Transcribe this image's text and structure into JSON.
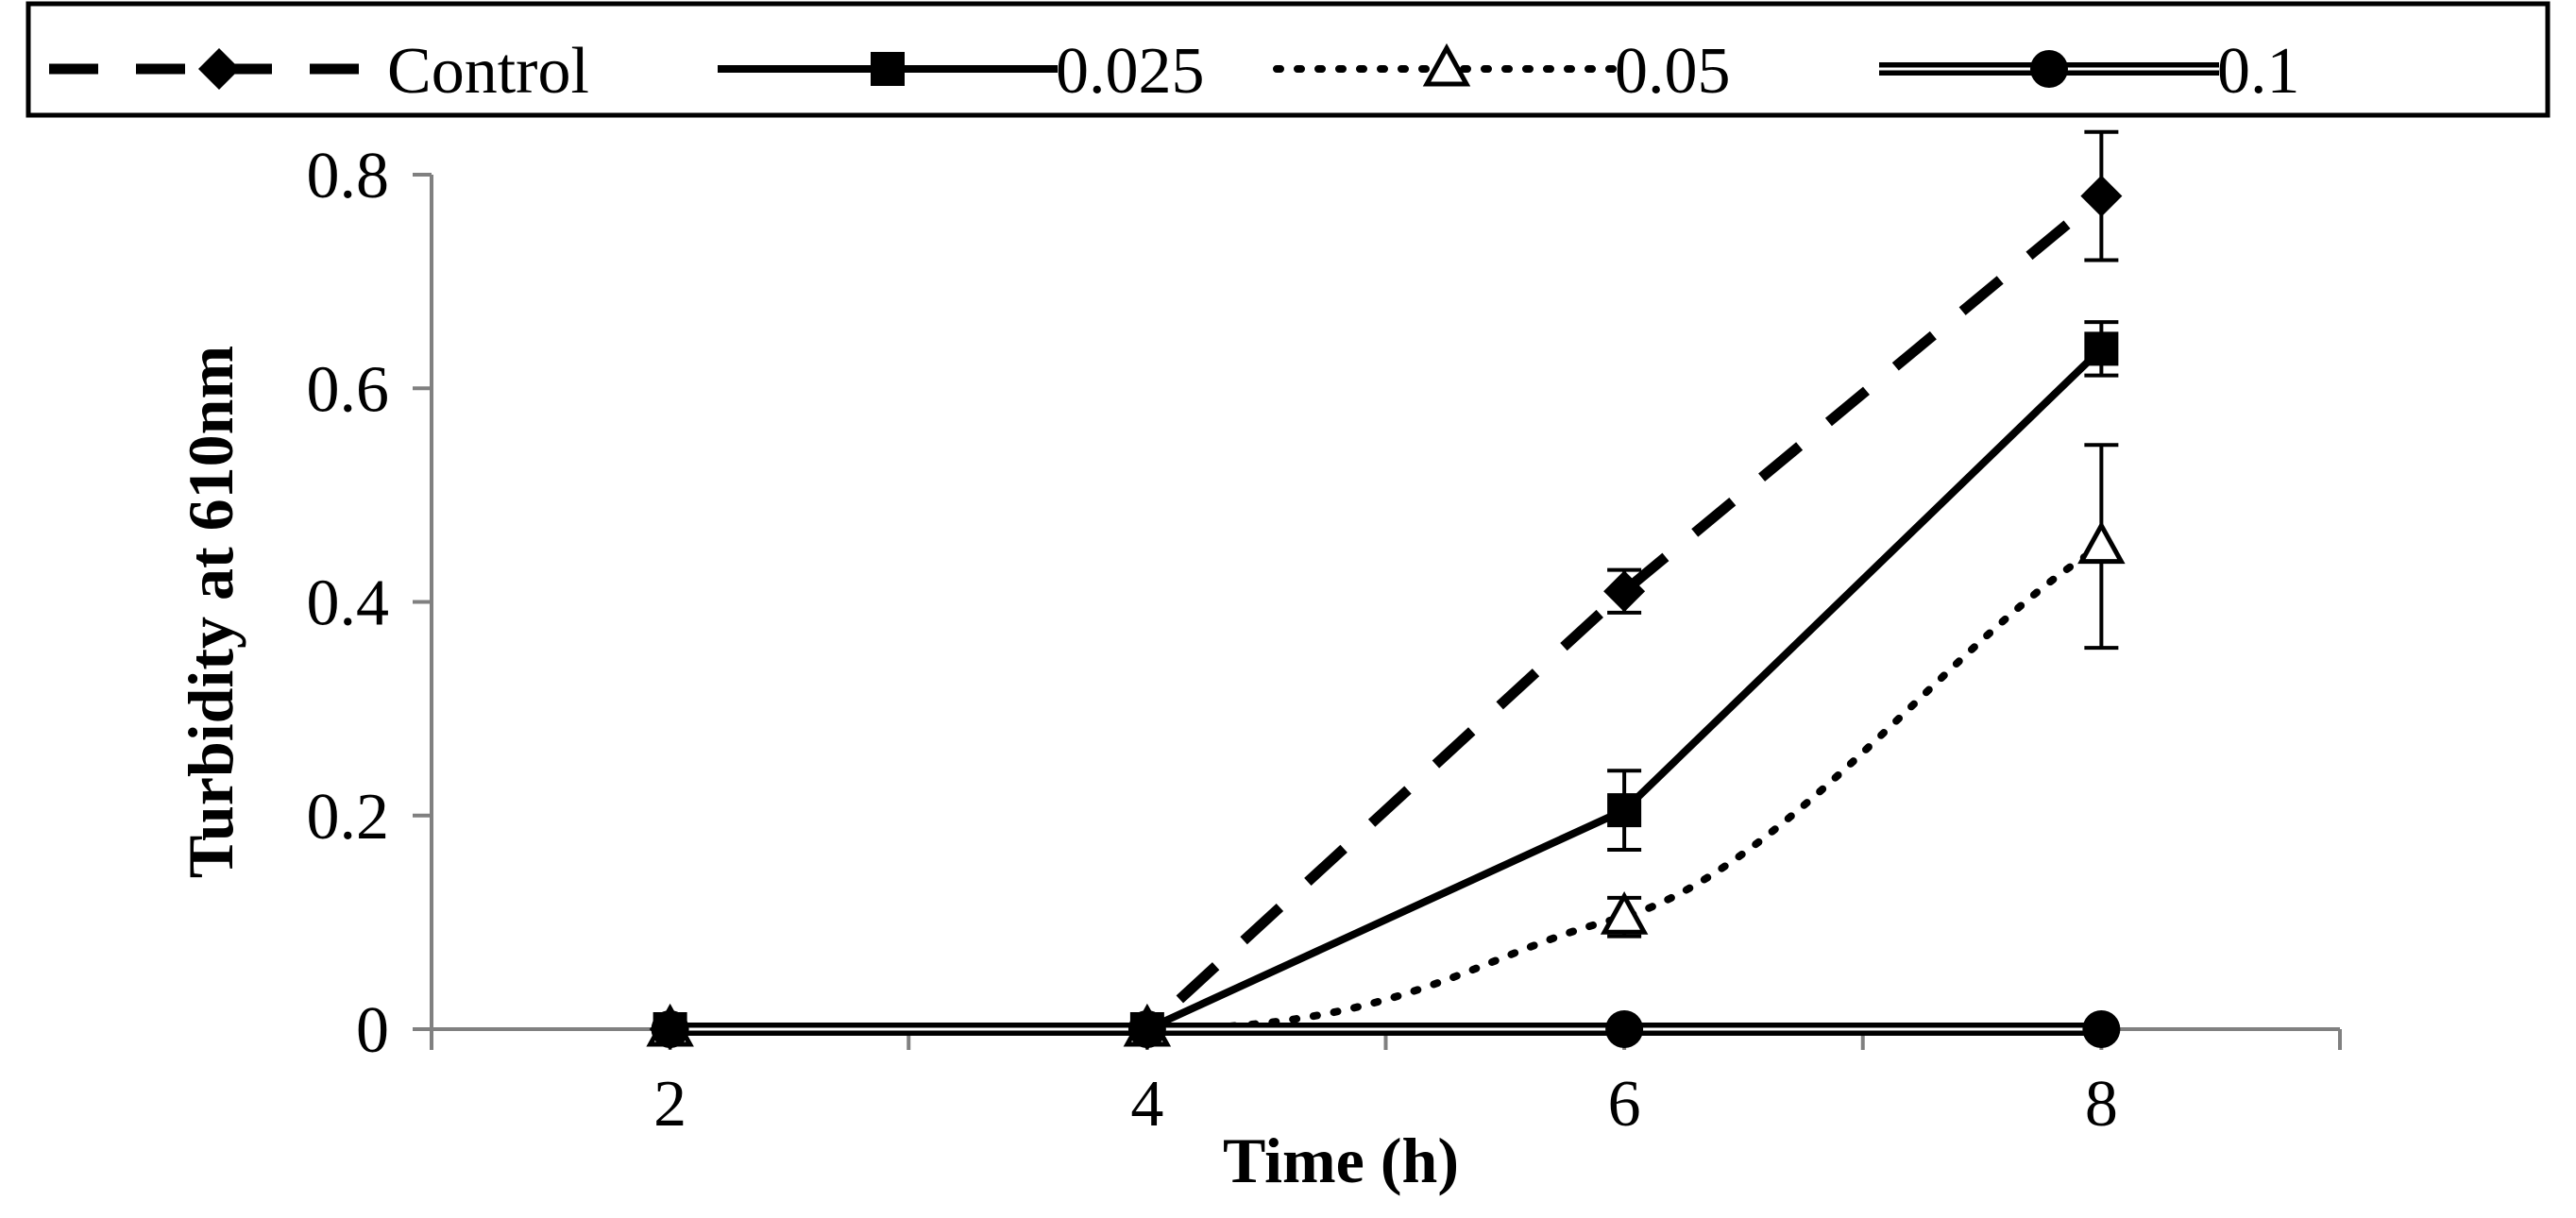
{
  "chart_data": {
    "type": "line",
    "title": "",
    "xlabel": "Time (h)",
    "ylabel": "Turbidity at 610nm",
    "x": [
      2,
      4,
      6,
      8
    ],
    "x_tick_labels": [
      "2",
      "4",
      "6",
      "8"
    ],
    "xlim": [
      1,
      9
    ],
    "ylim": [
      0,
      0.8
    ],
    "y_ticks": [
      0,
      0.2,
      0.4,
      0.6,
      0.8
    ],
    "y_tick_labels": [
      "0",
      "0.2",
      "0.4",
      "0.6",
      "0.8"
    ],
    "grid": false,
    "legend_position": "top",
    "series": [
      {
        "name": "Control",
        "values": [
          0,
          0,
          0.41,
          0.78
        ],
        "errors": [
          0,
          0,
          0.02,
          0.06
        ],
        "line": "dashed",
        "marker": "diamond-filled",
        "smooth": false
      },
      {
        "name": "0.025",
        "values": [
          0,
          0,
          0.205,
          0.637
        ],
        "errors": [
          0,
          0,
          0.037,
          0.025
        ],
        "line": "solid",
        "marker": "square-filled",
        "smooth": false
      },
      {
        "name": "0.05",
        "values": [
          0,
          0,
          0.105,
          0.452
        ],
        "errors": [
          0,
          0,
          0.018,
          0.095
        ],
        "line": "dotted",
        "marker": "triangle-open",
        "smooth": true
      },
      {
        "name": "0.1",
        "values": [
          0,
          0,
          0,
          0
        ],
        "errors": [
          0,
          0,
          0,
          0
        ],
        "line": "double",
        "marker": "circle-filled",
        "smooth": false
      }
    ]
  }
}
